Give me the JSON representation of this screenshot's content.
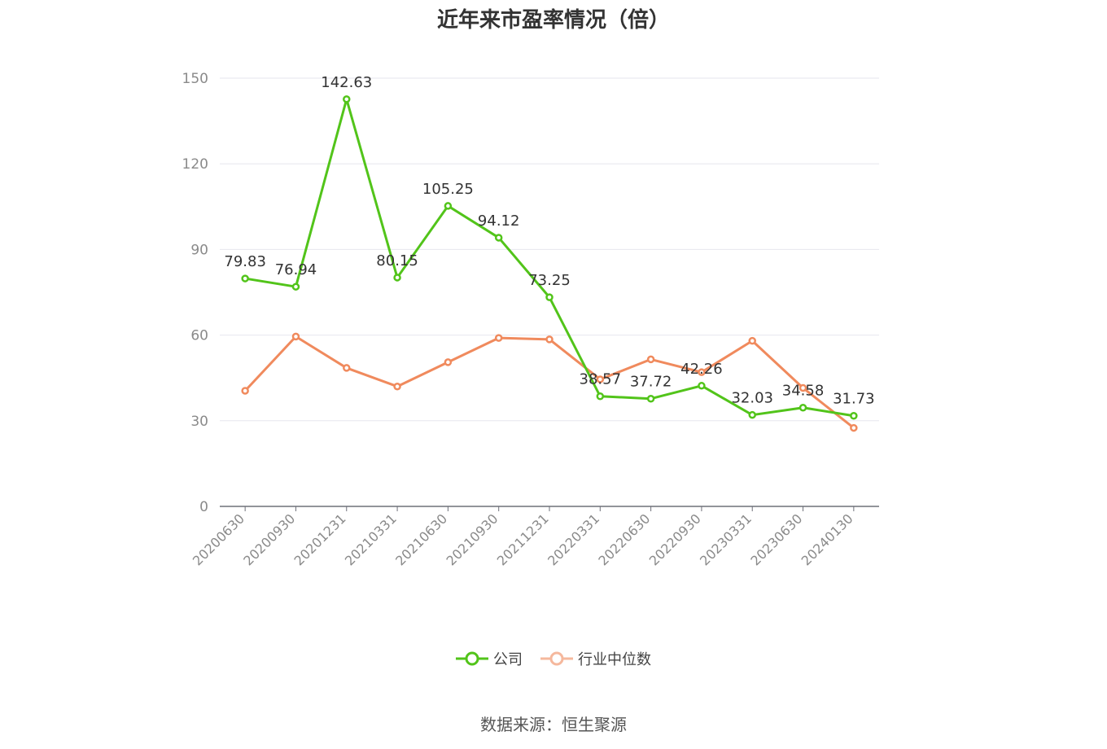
{
  "title": "近年来市盈率情况（倍）",
  "source": "数据来源：恒生聚源",
  "colors": {
    "company": "#52c41a",
    "industry": "#f08a5d",
    "grid": "#e6e6ee",
    "axis": "#888888"
  },
  "chart_data": {
    "type": "line",
    "title": "近年来市盈率情况（倍）",
    "categories": [
      "20200630",
      "20200930",
      "20201231",
      "20210331",
      "20210630",
      "20210930",
      "20211231",
      "20220331",
      "20220630",
      "20220930",
      "20230331",
      "20230630",
      "20240130"
    ],
    "ylim": [
      0,
      150
    ],
    "yticks": [
      0,
      30,
      60,
      90,
      120,
      150
    ],
    "grid": true,
    "legend_position": "bottom",
    "series": [
      {
        "name": "公司",
        "values": [
          79.83,
          76.94,
          142.63,
          80.15,
          105.25,
          94.12,
          73.25,
          38.57,
          37.72,
          42.26,
          32.03,
          34.58,
          31.73
        ],
        "labels": [
          "79.83",
          "76.94",
          "142.63",
          "80.15",
          "105.25",
          "94.12",
          "73.25",
          "38.57",
          "37.72",
          "42.26",
          "32.03",
          "34.58",
          "31.73"
        ]
      },
      {
        "name": "行业中位数",
        "values": [
          40.5,
          59.5,
          48.5,
          42.0,
          50.5,
          59.0,
          58.5,
          44.5,
          51.5,
          47.0,
          58.0,
          41.5,
          27.5
        ]
      }
    ]
  }
}
